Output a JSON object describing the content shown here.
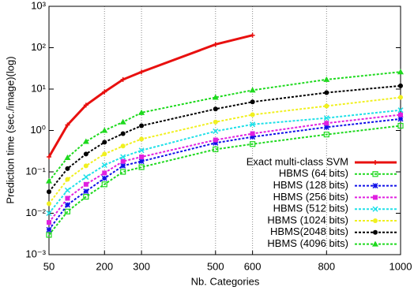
{
  "chart_data": {
    "type": "line",
    "x_label": "Nb. Categories",
    "y_label": "Prediction time (sec./image)(log)",
    "x": [
      50,
      100,
      150,
      200,
      250,
      300,
      500,
      600,
      800,
      1000
    ],
    "xlim": [
      50,
      1000
    ],
    "xticks": [
      50,
      200,
      300,
      500,
      600,
      800,
      1000
    ],
    "ylim": [
      0.001,
      1000
    ],
    "log_y": true,
    "yticks": [
      {
        "value": 0.001,
        "label": "10⁻³"
      },
      {
        "value": 0.01,
        "label": "10⁻²"
      },
      {
        "value": 0.1,
        "label": "10⁻¹"
      },
      {
        "value": 1,
        "label": "10⁰"
      },
      {
        "value": 10,
        "label": "10¹"
      },
      {
        "value": 100,
        "label": "10²"
      },
      {
        "value": 1000,
        "label": "10³"
      }
    ],
    "x_grid": true,
    "legend": "right",
    "series": [
      {
        "name": "Exact multi-class SVM",
        "color": "#e8100f",
        "marker": "plus",
        "values": [
          0.23,
          1.36,
          4.1,
          8.6,
          17,
          26,
          120,
          200,
          null,
          null
        ]
      },
      {
        "name": "HBMS (64 bits)",
        "color": "#1ed91e",
        "marker": "square-open",
        "values": [
          0.003,
          0.011,
          0.025,
          0.05,
          0.1,
          0.13,
          0.35,
          0.47,
          0.8,
          1.3
        ]
      },
      {
        "name": "HBMS (128 bits)",
        "color": "#1010e8",
        "marker": "star",
        "values": [
          0.004,
          0.016,
          0.034,
          0.07,
          0.14,
          0.18,
          0.5,
          0.7,
          1.2,
          1.9
        ]
      },
      {
        "name": "HBMS (256 bits)",
        "color": "#e020e0",
        "marker": "square",
        "values": [
          0.006,
          0.023,
          0.05,
          0.094,
          0.18,
          0.23,
          0.59,
          0.84,
          1.5,
          2.4
        ]
      },
      {
        "name": "HBMS (512 bits)",
        "color": "#20e0e8",
        "marker": "cross",
        "values": [
          0.01,
          0.036,
          0.075,
          0.145,
          0.23,
          0.33,
          0.96,
          1.4,
          2.0,
          3.1
        ]
      },
      {
        "name": "HBMS (1024 bits)",
        "color": "#f0f020",
        "marker": "circle",
        "values": [
          0.017,
          0.066,
          0.14,
          0.27,
          0.42,
          0.62,
          1.6,
          2.4,
          3.9,
          6.3
        ]
      },
      {
        "name": "HBMS(2048 bits)",
        "color": "#000000",
        "marker": "circle",
        "values": [
          0.033,
          0.12,
          0.27,
          0.52,
          0.84,
          1.3,
          3.3,
          4.9,
          8.2,
          12
        ]
      },
      {
        "name": "HBMS (4096 bits)",
        "color": "#1ed91e",
        "marker": "triangle",
        "values": [
          0.06,
          0.22,
          0.54,
          1.0,
          1.6,
          2.7,
          6.3,
          9.4,
          17,
          26
        ]
      }
    ]
  }
}
